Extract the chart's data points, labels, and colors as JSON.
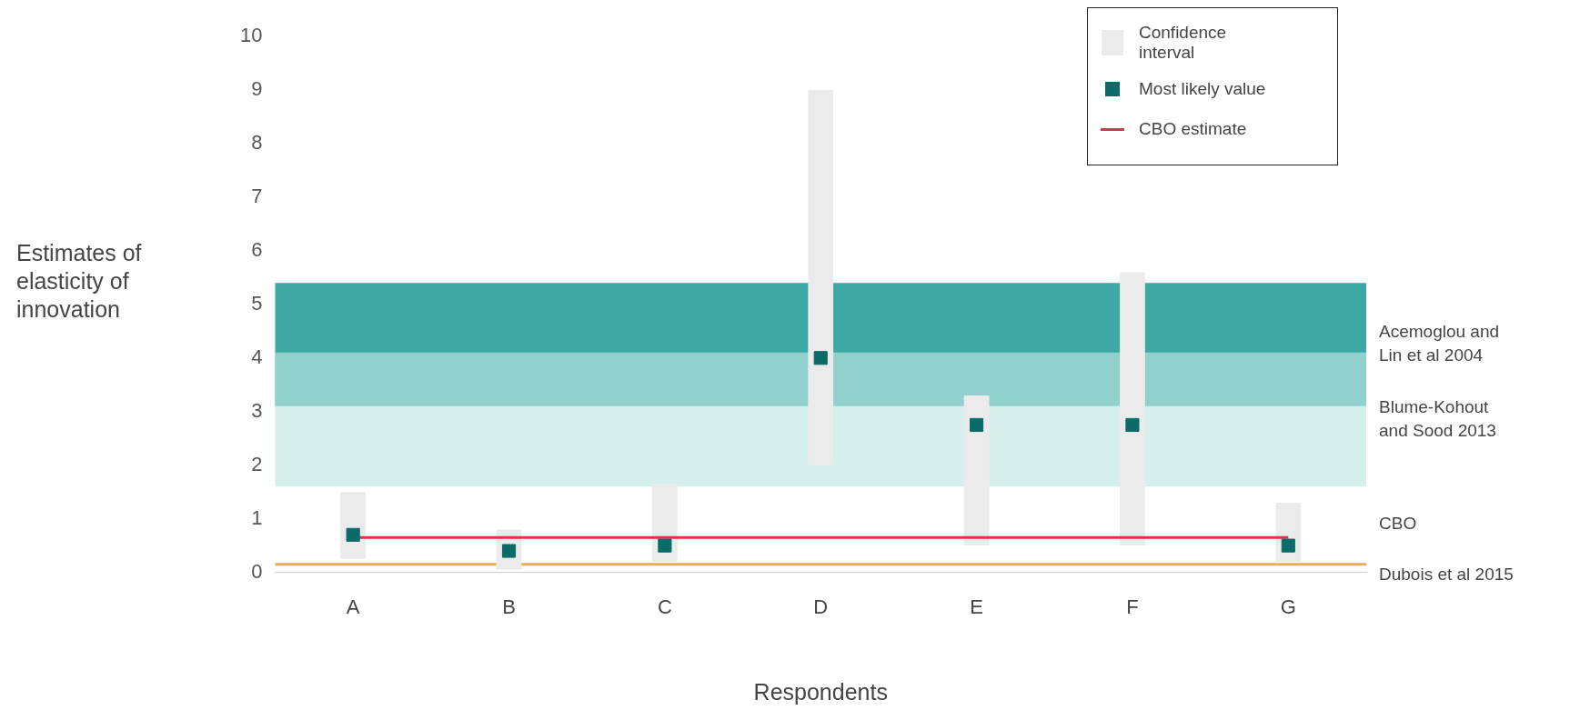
{
  "chart_data": {
    "type": "bar",
    "xlabel": "Respondents",
    "ylabel": "Estimates of elasticity of innovation",
    "categories": [
      "A",
      "B",
      "C",
      "D",
      "E",
      "F",
      "G"
    ],
    "ylim": [
      0,
      10
    ],
    "yticks": [
      0,
      1,
      2,
      3,
      4,
      5,
      6,
      7,
      8,
      9,
      10
    ],
    "grid": false,
    "legend": "top right",
    "series": [
      {
        "name": "Confidence interval",
        "color": "#ebebeb",
        "base": [
          0.25,
          0.05,
          0.2,
          2.0,
          0.5,
          0.5,
          0.2
        ],
        "values": [
          1.25,
          0.75,
          1.45,
          7.0,
          2.8,
          5.1,
          1.1
        ]
      },
      {
        "type": "scatter",
        "name": "Most likely value",
        "color": "#0b6b68",
        "marker": "square",
        "values": [
          0.7,
          0.4,
          0.5,
          4.0,
          2.75,
          2.75,
          0.5
        ]
      },
      {
        "type": "line",
        "name": "CBO estimate",
        "color": "#d7364a",
        "values": [
          0.65,
          0.65,
          0.65,
          0.65,
          0.65,
          0.65,
          0.65
        ]
      }
    ],
    "bands": [
      {
        "axis": "y",
        "from": 3.1,
        "to": 5.4,
        "label": "Acemoglou and Lin et al 2004",
        "color": "#0e938d"
      },
      {
        "axis": "y",
        "from": 1.6,
        "to": 4.1,
        "label": "Blume-Kohout and Sood 2013",
        "color": "#bfe6e3"
      }
    ],
    "ref_lines": [
      {
        "axis": "y",
        "value": 0.15,
        "label": "Dubois et al 2015",
        "color": "#e8b23a"
      }
    ],
    "annotations": [
      "CBO"
    ]
  }
}
